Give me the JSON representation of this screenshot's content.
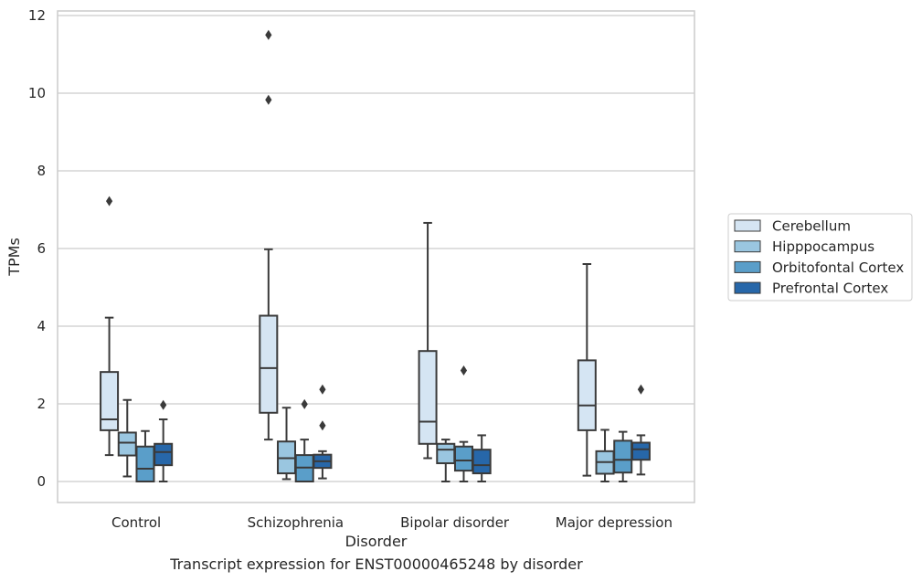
{
  "caption": "Transcript expression for ENST00000465248 by disorder",
  "chart_data": {
    "type": "box",
    "xlabel": "Disorder",
    "ylabel": "TPMs",
    "ylim": [
      -0.55,
      12.1
    ],
    "yticks": [
      0,
      2,
      4,
      6,
      8,
      10,
      12
    ],
    "grid": "horizontal",
    "legend_position": "right",
    "categories": [
      "Control",
      "Schizophrenia",
      "Bipolar disorder",
      "Major depression"
    ],
    "series": [
      {
        "name": "Cerebellum",
        "color": "#d5e5f3",
        "boxes": [
          {
            "whisker_low": 0.68,
            "q1": 1.32,
            "median": 1.6,
            "q3": 2.82,
            "whisker_high": 4.22,
            "outliers": [
              7.22
            ]
          },
          {
            "whisker_low": 1.08,
            "q1": 1.77,
            "median": 2.92,
            "q3": 4.27,
            "whisker_high": 5.98,
            "outliers": [
              9.83,
              11.5
            ]
          },
          {
            "whisker_low": 0.6,
            "q1": 0.97,
            "median": 1.54,
            "q3": 3.36,
            "whisker_high": 6.66,
            "outliers": []
          },
          {
            "whisker_low": 0.15,
            "q1": 1.32,
            "median": 1.96,
            "q3": 3.12,
            "whisker_high": 5.6,
            "outliers": []
          }
        ]
      },
      {
        "name": "Hipppocampus",
        "color": "#9ac6e0",
        "boxes": [
          {
            "whisker_low": 0.13,
            "q1": 0.67,
            "median": 1.0,
            "q3": 1.26,
            "whisker_high": 2.1,
            "outliers": []
          },
          {
            "whisker_low": 0.06,
            "q1": 0.21,
            "median": 0.6,
            "q3": 1.03,
            "whisker_high": 1.9,
            "outliers": []
          },
          {
            "whisker_low": 0.0,
            "q1": 0.47,
            "median": 0.82,
            "q3": 0.97,
            "whisker_high": 1.08,
            "outliers": []
          },
          {
            "whisker_low": 0.0,
            "q1": 0.2,
            "median": 0.5,
            "q3": 0.78,
            "whisker_high": 1.33,
            "outliers": []
          }
        ]
      },
      {
        "name": "Orbitofontal Cortex",
        "color": "#5a9ec9",
        "boxes": [
          {
            "whisker_low": 0.0,
            "q1": 0.0,
            "median": 0.33,
            "q3": 0.9,
            "whisker_high": 1.3,
            "outliers": []
          },
          {
            "whisker_low": 0.0,
            "q1": 0.0,
            "median": 0.36,
            "q3": 0.68,
            "whisker_high": 1.08,
            "outliers": [
              1.99
            ]
          },
          {
            "whisker_low": 0.0,
            "q1": 0.28,
            "median": 0.54,
            "q3": 0.9,
            "whisker_high": 1.02,
            "outliers": [
              2.86
            ]
          },
          {
            "whisker_low": 0.0,
            "q1": 0.23,
            "median": 0.56,
            "q3": 1.05,
            "whisker_high": 1.28,
            "outliers": []
          }
        ]
      },
      {
        "name": "Prefrontal Cortex",
        "color": "#2767a9",
        "boxes": [
          {
            "whisker_low": 0.0,
            "q1": 0.42,
            "median": 0.76,
            "q3": 0.97,
            "whisker_high": 1.6,
            "outliers": [
              1.97
            ]
          },
          {
            "whisker_low": 0.08,
            "q1": 0.35,
            "median": 0.52,
            "q3": 0.69,
            "whisker_high": 0.78,
            "outliers": [
              1.44,
              2.37
            ]
          },
          {
            "whisker_low": 0.0,
            "q1": 0.21,
            "median": 0.42,
            "q3": 0.82,
            "whisker_high": 1.19,
            "outliers": []
          },
          {
            "whisker_low": 0.18,
            "q1": 0.56,
            "median": 0.83,
            "q3": 1.0,
            "whisker_high": 1.19,
            "outliers": [
              2.37
            ]
          }
        ]
      }
    ]
  }
}
